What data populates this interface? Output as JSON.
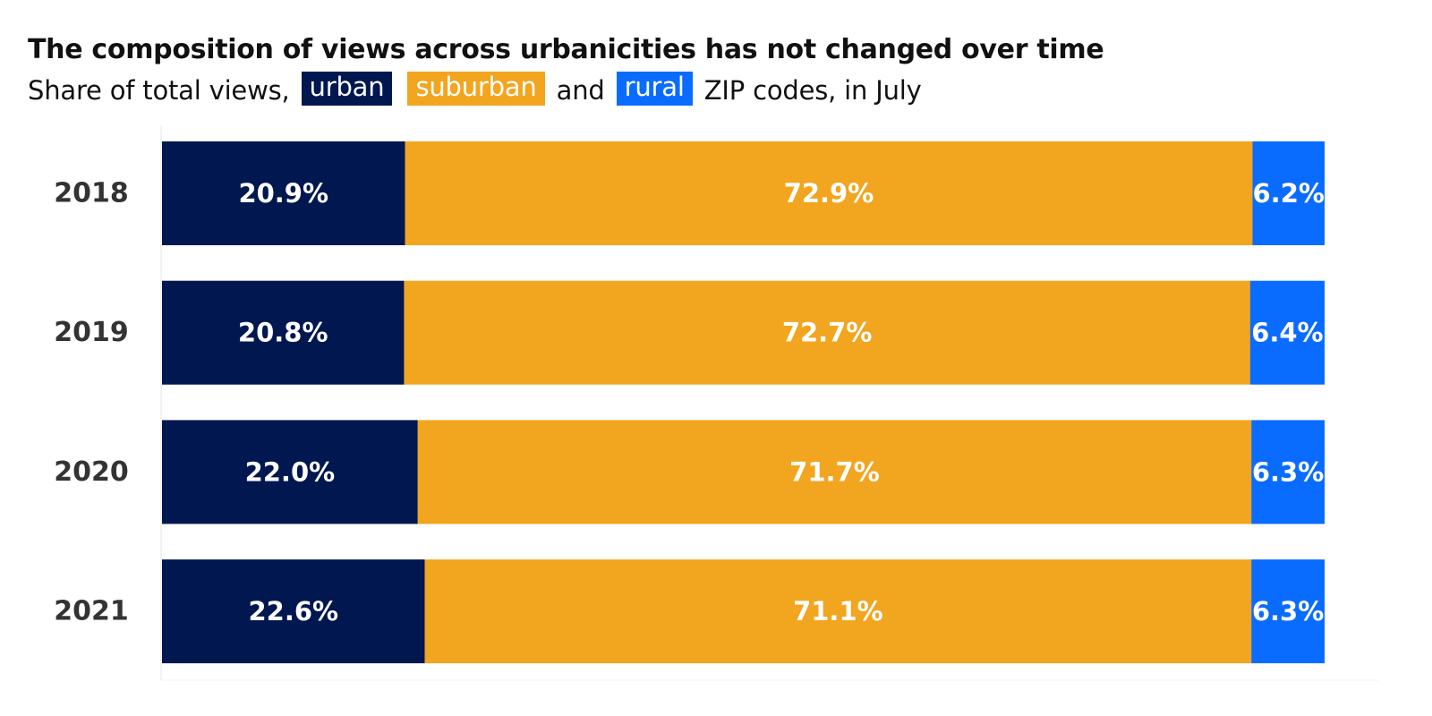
{
  "title": "The composition of views across urbanicities has not changed over time",
  "subtitle": {
    "prefix": "Share of total views,",
    "chip_urban": "urban",
    "chip_suburban": "suburban",
    "and": "and",
    "chip_rural": "rural",
    "suffix": "ZIP codes, in July"
  },
  "colors": {
    "urban": "#00174f",
    "suburban": "#f2a51e",
    "rural": "#0a6cff",
    "axis": "#e6e6e6"
  },
  "chart_data": {
    "type": "bar",
    "orientation": "horizontal",
    "stacked": true,
    "normalized": true,
    "title": "The composition of views across urbanicities has not changed over time",
    "categories": [
      "2018",
      "2019",
      "2020",
      "2021"
    ],
    "series": [
      {
        "name": "urban",
        "values": [
          20.9,
          20.8,
          22.0,
          22.6
        ],
        "labels": [
          "20.9%",
          "20.8%",
          "22.0%",
          "22.6%"
        ]
      },
      {
        "name": "suburban",
        "values": [
          72.9,
          72.7,
          71.7,
          71.1
        ],
        "labels": [
          "72.9%",
          "72.7%",
          "71.7%",
          "71.1%"
        ]
      },
      {
        "name": "rural",
        "values": [
          6.2,
          6.4,
          6.3,
          6.3
        ],
        "labels": [
          "6.2%",
          "6.4%",
          "6.3%",
          "6.3%"
        ]
      }
    ],
    "xlim": [
      0,
      100
    ],
    "legend": "inline in subtitle",
    "grid": false
  }
}
